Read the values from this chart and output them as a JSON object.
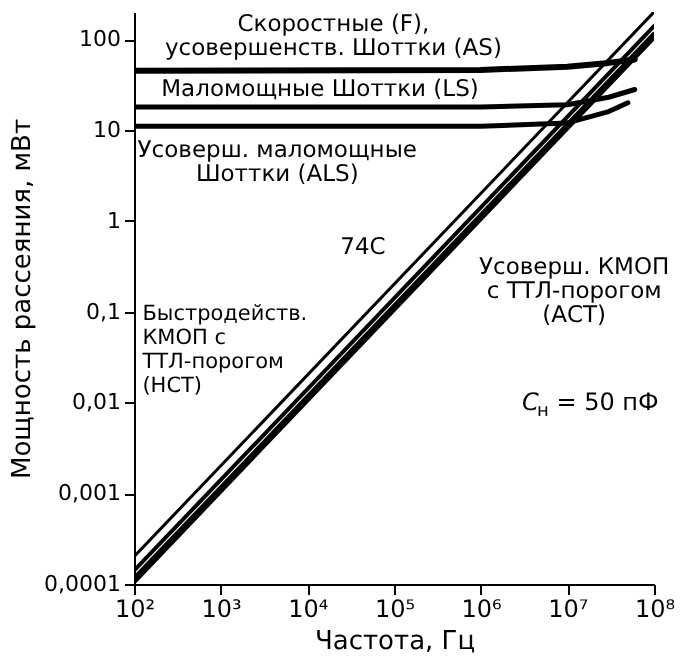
{
  "chart_data": {
    "type": "line",
    "xlabel": "Частота, Гц",
    "ylabel": "Мощность рассеяния, мВт",
    "log": "xy",
    "xlim": [
      100,
      100000000
    ],
    "ylim": [
      0.0001,
      200
    ],
    "xticks": [
      {
        "value": 100,
        "label": "10²"
      },
      {
        "value": 1000,
        "label": "10³"
      },
      {
        "value": 10000,
        "label": "10⁴"
      },
      {
        "value": 100000,
        "label": "10⁵"
      },
      {
        "value": 1000000,
        "label": "10⁶"
      },
      {
        "value": 10000000,
        "label": "10⁷"
      },
      {
        "value": 100000000,
        "label": "10⁸"
      }
    ],
    "yticks": [
      {
        "value": 0.0001,
        "label": "0,0001"
      },
      {
        "value": 0.001,
        "label": "0,001"
      },
      {
        "value": 0.01,
        "label": "0,01"
      },
      {
        "value": 0.1,
        "label": "0,1"
      },
      1,
      10,
      100
    ],
    "grid": false,
    "marker": "none",
    "line_style": "solid",
    "series": [
      {
        "name": "Скоростные (F), усовершенств. Шоттки (AS)",
        "color": "#000000",
        "x": [
          100,
          1000000,
          10000000,
          30000000,
          60000000
        ],
        "values": [
          45,
          46,
          50,
          55,
          60
        ]
      },
      {
        "name": "Маломощные Шоттки (LS)",
        "color": "#000000",
        "x": [
          100,
          1000000,
          10000000,
          30000000,
          60000000
        ],
        "values": [
          18,
          18,
          19,
          23,
          28
        ]
      },
      {
        "name": "Усоверш. маломощные Шоттки (ALS)",
        "color": "#000000",
        "x": [
          100,
          1000000,
          10000000,
          30000000,
          50000000
        ],
        "values": [
          11,
          11,
          12,
          16,
          20
        ]
      },
      {
        "name": "74C",
        "color": "#000000",
        "x": [
          100,
          100000000
        ],
        "values": [
          0.0002,
          200
        ]
      },
      {
        "name": "Быстродейств. КМОП с ТТЛ-порогом (НСТ)",
        "color": "#000000",
        "x": [
          100,
          100000000
        ],
        "values": [
          0.00014,
          140
        ]
      },
      {
        "name": "Усоверш. КМОП с ТТЛ-порогом (АСТ)",
        "color": "#000000",
        "x": [
          100,
          100000000
        ],
        "values": [
          0.00011,
          110
        ]
      }
    ],
    "annotations": [
      "C$_{н}$ = 50 пФ"
    ]
  }
}
